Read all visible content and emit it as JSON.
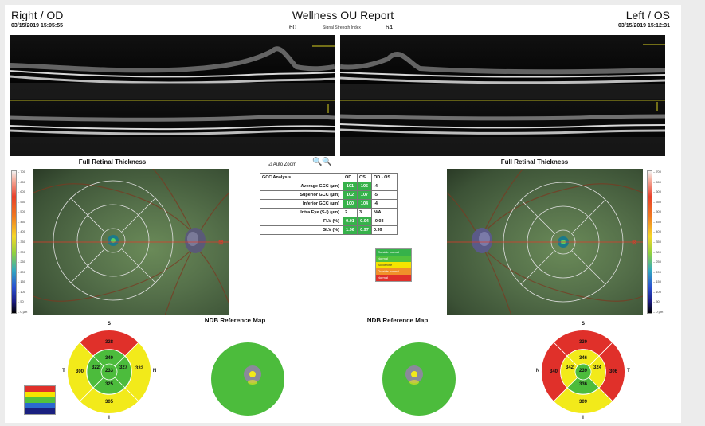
{
  "header": {
    "left_eye": "Right / OD",
    "title": "Wellness OU Report",
    "right_eye": "Left / OS",
    "left_date": "03/15/2019 15:05:55",
    "right_date": "03/15/2019 15:12:31",
    "ssi_left": "60",
    "ssi_label": "Signal Strength Index",
    "ssi_right": "64"
  },
  "thickness": {
    "left_title": "Full Retinal Thickness",
    "right_title": "Full Retinal Thickness",
    "scale_ticks": [
      "700",
      "650",
      "600",
      "550",
      "500",
      "450",
      "400",
      "350",
      "300",
      "250",
      "200",
      "150",
      "100",
      "50",
      "0 µm"
    ]
  },
  "auto_zoom": {
    "label": "Auto Zoom"
  },
  "gcc_table": {
    "headers": [
      "GCC Analysis",
      "OD",
      "OS",
      "OD - OS"
    ],
    "rows": [
      [
        "Average GCC (µm)",
        "101",
        "105",
        "-4"
      ],
      [
        "Superior GCC (µm)",
        "102",
        "107",
        "-5"
      ],
      [
        "Inferior GCC (µm)",
        "100",
        "104",
        "-4"
      ],
      [
        "Intra Eye (S-I) (µm)",
        "2",
        "3",
        "N/A"
      ],
      [
        "FLV (%)",
        "0.01",
        "0.04",
        "-0.03"
      ],
      [
        "GLV (%)",
        "1.96",
        "0.97",
        "0.99"
      ]
    ]
  },
  "status_legend": {
    "items": [
      "Outside normal",
      "Normal",
      "Borderline",
      "Outside normal",
      "Normal"
    ],
    "colors": [
      "#36b24a",
      "#52c23c",
      "#f5e400",
      "#f0902a",
      "#e0302a"
    ]
  },
  "ndb": {
    "left_title": "NDB Reference Map",
    "right_title": "NDB Reference Map"
  },
  "od_sectors": {
    "S": "S",
    "I": "I",
    "N": "N",
    "T": "T",
    "outer_sup": "328",
    "outer_temp": "300",
    "outer_nas": "332",
    "outer_inf": "305",
    "inner_sup": "340",
    "inner_temp": "322",
    "inner_nas": "327",
    "inner_inf": "325",
    "center": "233"
  },
  "os_sectors": {
    "S": "S",
    "I": "I",
    "N": "N",
    "T": "T",
    "outer_sup": "330",
    "outer_temp": "306",
    "outer_nas": "340",
    "outer_inf": "309",
    "inner_sup": "346",
    "inner_temp": "324",
    "inner_nas": "342",
    "inner_inf": "336",
    "center": "239"
  },
  "sector_legend": {
    "colors": [
      "#e0302a",
      "#f5e400",
      "#52c23c",
      "#2a6ad0",
      "#1a2080"
    ]
  },
  "colors": {
    "red": "#e0302a",
    "yellow": "#f2ea1a",
    "green": "#4cbc3c",
    "crosshair": "#e03a2a"
  }
}
